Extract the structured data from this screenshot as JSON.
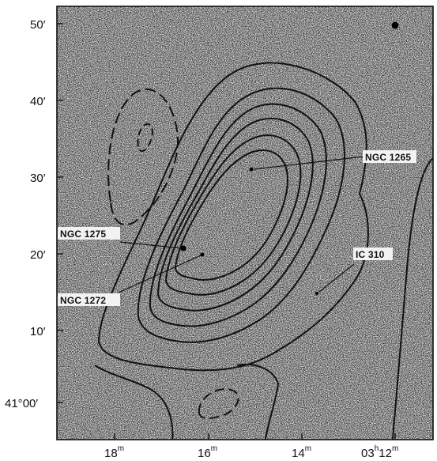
{
  "figure": {
    "y_axis_labels": [
      {
        "deg": "",
        "min": "50"
      },
      {
        "deg": "",
        "min": "40"
      },
      {
        "deg": "",
        "min": "30"
      },
      {
        "deg": "",
        "min": "20"
      },
      {
        "deg": "",
        "min": "10"
      },
      {
        "deg": "41°",
        "min": "00"
      }
    ],
    "x_axis_labels": [
      {
        "h": "",
        "m": "18"
      },
      {
        "h": "",
        "m": "16"
      },
      {
        "h": "",
        "m": "14"
      },
      {
        "h": "03",
        "m": "12"
      }
    ],
    "galaxy_labels": [
      {
        "id": "ngc1265",
        "text": "NGC 1265"
      },
      {
        "id": "ngc1275",
        "text": "NGC 1275"
      },
      {
        "id": "ngc1272",
        "text": "NGC 1272"
      },
      {
        "id": "ic310",
        "text": "IC 310"
      }
    ],
    "contour_style": {
      "solid": "positive",
      "dashed": "negative"
    }
  }
}
